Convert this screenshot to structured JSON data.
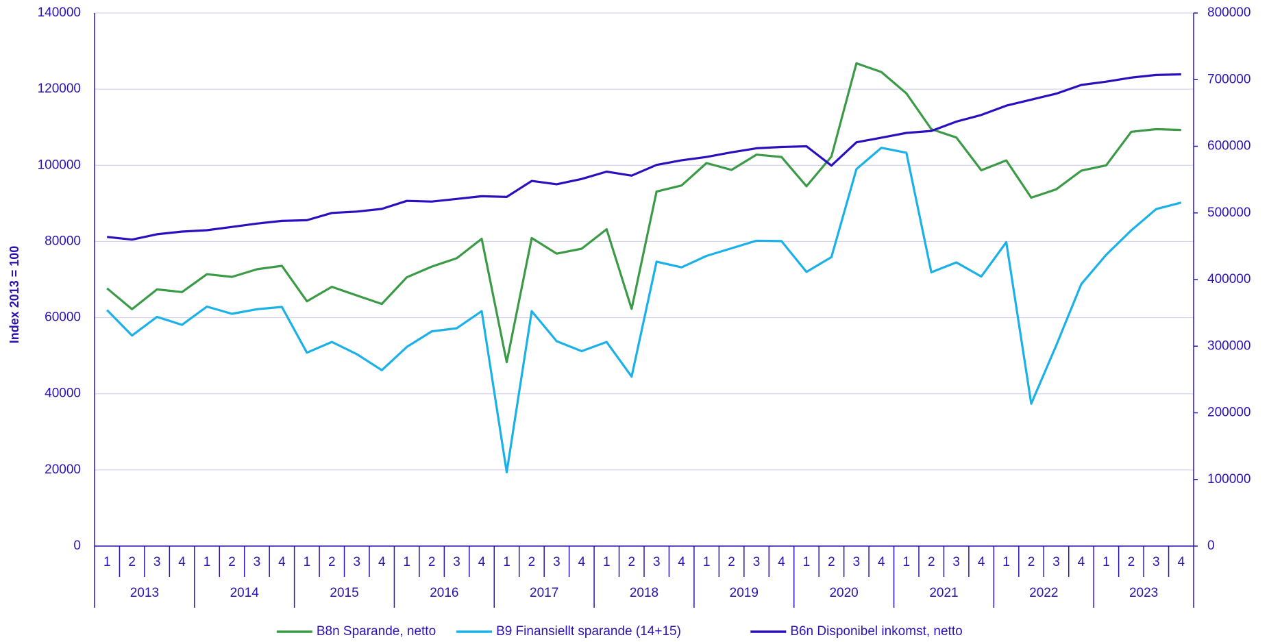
{
  "chart_data": {
    "type": "line",
    "y_label": "Index 2013 = 100",
    "categories": [
      "1",
      "2",
      "3",
      "4",
      "1",
      "2",
      "3",
      "4",
      "1",
      "2",
      "3",
      "4",
      "1",
      "2",
      "3",
      "4",
      "1",
      "2",
      "3",
      "4",
      "1",
      "2",
      "3",
      "4",
      "1",
      "2",
      "3",
      "4",
      "1",
      "2",
      "3",
      "4",
      "1",
      "2",
      "3",
      "4",
      "1",
      "2",
      "3",
      "4",
      "1",
      "2",
      "3",
      "4"
    ],
    "groups": [
      "2013",
      "2014",
      "2015",
      "2016",
      "2017",
      "2018",
      "2019",
      "2020",
      "2021",
      "2022",
      "2023"
    ],
    "ylim": [
      0,
      140000
    ],
    "yticks": [
      0,
      20000,
      40000,
      60000,
      80000,
      100000,
      120000,
      140000
    ],
    "y2lim": [
      0,
      800000
    ],
    "y2ticks": [
      0,
      100000,
      200000,
      300000,
      400000,
      500000,
      600000,
      700000,
      800000
    ],
    "grid": true,
    "legend": "bottom",
    "series": [
      {
        "name": "B8n Sparande, netto",
        "color": "#3a9a46",
        "axis": "y",
        "values": [
          67700,
          62200,
          67400,
          66700,
          71400,
          70700,
          72700,
          73600,
          64300,
          68100,
          65800,
          63600,
          70600,
          73400,
          75600,
          80700,
          48300,
          80900,
          76800,
          78100,
          83200,
          62300,
          93100,
          94700,
          100600,
          98800,
          102800,
          102200,
          94500,
          102300,
          126800,
          124500,
          118900,
          109500,
          107300,
          98700,
          101300,
          91500,
          93700,
          98600,
          100000,
          108800,
          109500,
          109300
        ]
      },
      {
        "name": "B9 Finansiellt sparande (14+15)",
        "color": "#1ab0e8",
        "axis": "y",
        "values": [
          62000,
          55300,
          60200,
          58100,
          62900,
          61000,
          62200,
          62800,
          50800,
          53600,
          50400,
          46200,
          52300,
          56400,
          57200,
          61700,
          19400,
          61700,
          53800,
          51200,
          53600,
          44500,
          74700,
          73200,
          76200,
          78200,
          80200,
          80100,
          72000,
          75900,
          99000,
          104600,
          103300,
          71900,
          74500,
          70800,
          79800,
          37400,
          52700,
          68800,
          76500,
          82900,
          88500,
          90200
        ]
      },
      {
        "name": "B6n Disponibel inkomst, netto",
        "color": "#2a0fbf",
        "axis": "y2",
        "values": [
          464000,
          460000,
          468000,
          472000,
          474000,
          479000,
          484000,
          488000,
          489000,
          500000,
          502000,
          506000,
          518000,
          517000,
          521000,
          525000,
          524000,
          548000,
          543000,
          551000,
          562000,
          556000,
          572000,
          579000,
          584000,
          591000,
          597000,
          599000,
          600000,
          571000,
          606000,
          613000,
          620000,
          623000,
          637000,
          647000,
          661000,
          670000,
          679000,
          692000,
          697000,
          703000,
          707000,
          708000
        ]
      }
    ]
  }
}
